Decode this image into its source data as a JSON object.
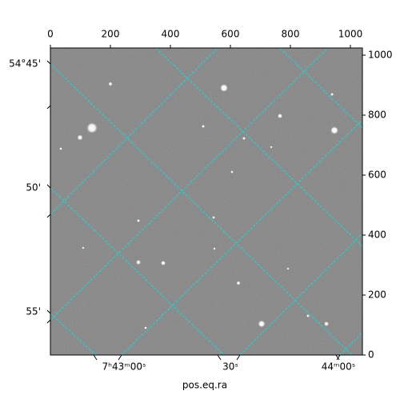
{
  "chart_data": {
    "type": "image",
    "xlabel": "pos.eq.ra",
    "xlim": [
      0,
      1040
    ],
    "ylim": [
      0,
      1024
    ],
    "xticks": [
      0,
      200,
      400,
      600,
      800,
      1000
    ],
    "yticks": [
      0,
      200,
      400,
      600,
      800,
      1000
    ],
    "ra_ticks": [
      "7ʰ43ᵐ00ˢ",
      "30ˢ",
      "44ᵐ00ˢ"
    ],
    "dec_ticks": [
      "54°45'",
      "50'",
      "55'"
    ]
  }
}
